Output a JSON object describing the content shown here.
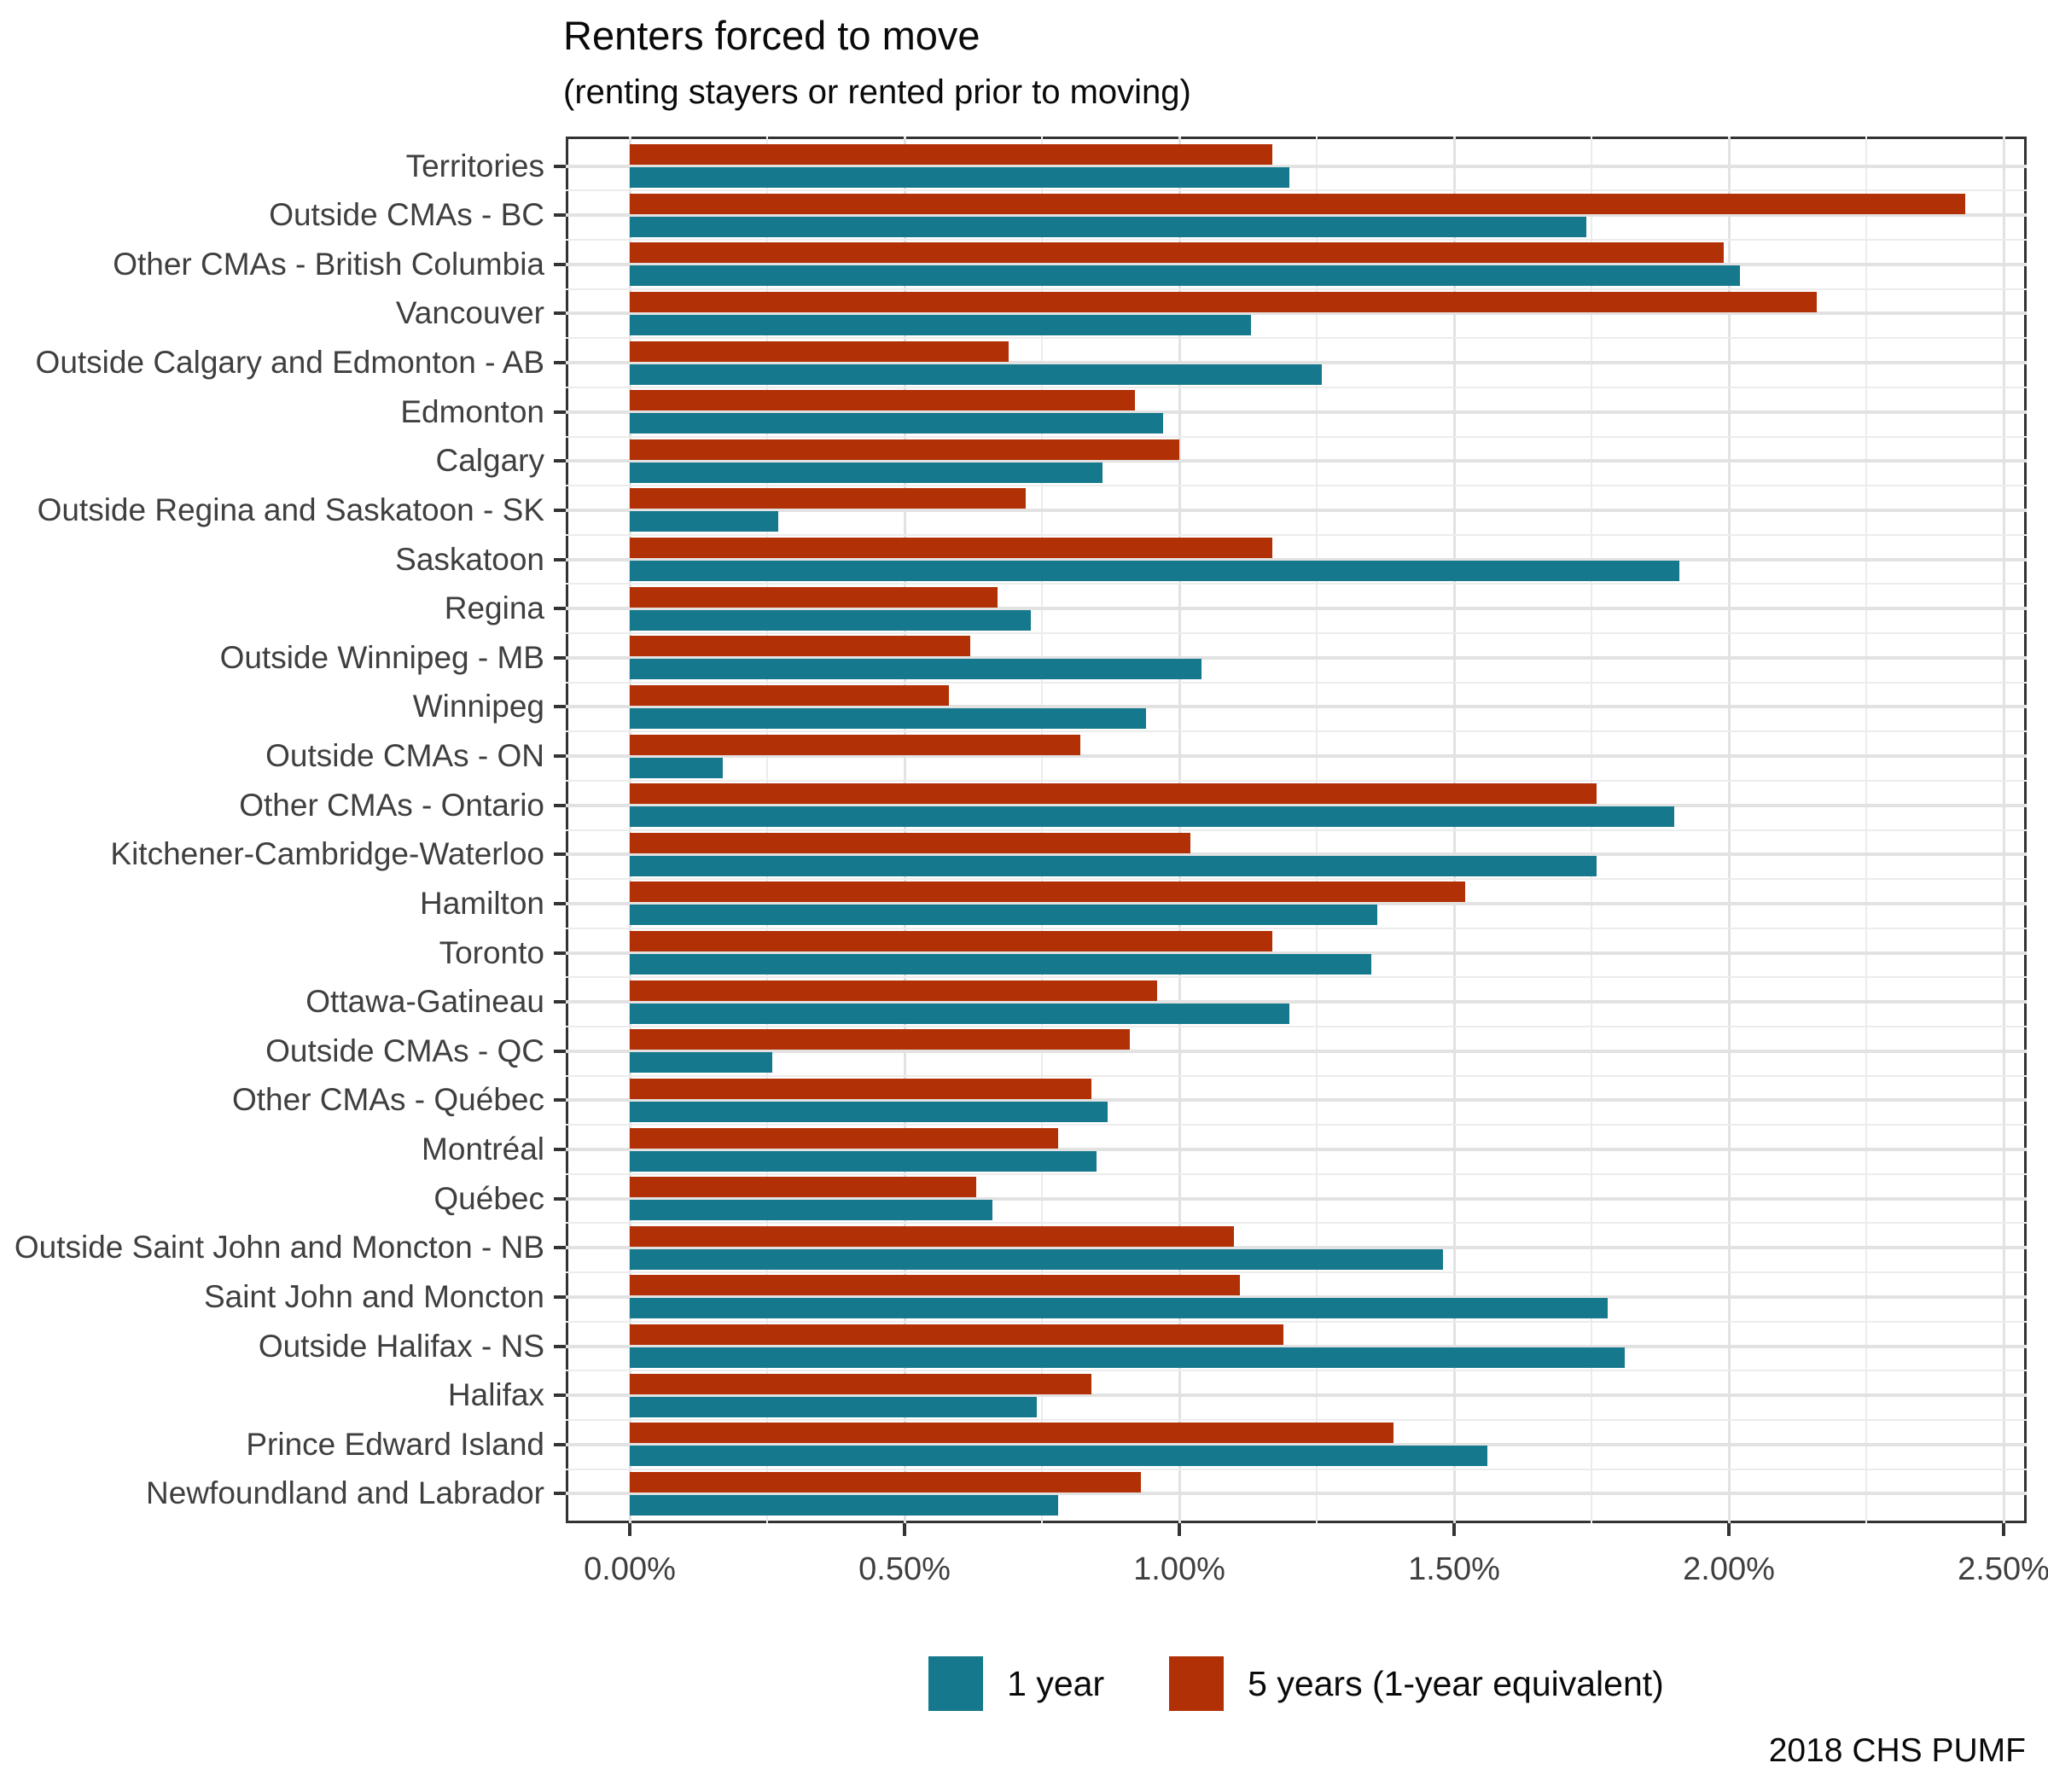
{
  "chart_data": {
    "type": "bar",
    "orientation": "horizontal",
    "title": "Renters forced to move",
    "subtitle": "(renting stayers or rented prior to moving)",
    "caption": "2018 CHS PUMF",
    "xlabel": "",
    "ylabel": "",
    "grid": true,
    "x_axis": {
      "min": 0,
      "max": 2.5,
      "unit": "percent",
      "tick_labels": [
        "0.00%",
        "0.50%",
        "1.00%",
        "1.50%",
        "2.00%",
        "2.50%"
      ],
      "major_step": 0.5,
      "minor_step": 0.25
    },
    "legend": {
      "position": "bottom",
      "items": [
        {
          "key": "one_year",
          "label": "1 year",
          "color": "#15788c"
        },
        {
          "key": "five_years",
          "label": "5 years (1-year equivalent)",
          "color": "#b23005"
        }
      ]
    },
    "categories": [
      "Territories",
      "Outside CMAs - BC",
      "Other CMAs - British Columbia",
      "Vancouver",
      "Outside Calgary and Edmonton - AB",
      "Edmonton",
      "Calgary",
      "Outside Regina and Saskatoon - SK",
      "Saskatoon",
      "Regina",
      "Outside Winnipeg - MB",
      "Winnipeg",
      "Outside CMAs - ON",
      "Other CMAs - Ontario",
      "Kitchener-Cambridge-Waterloo",
      "Hamilton",
      "Toronto",
      "Ottawa-Gatineau",
      "Outside CMAs - QC",
      "Other CMAs - Québec",
      "Montréal",
      "Québec",
      "Outside Saint John and Moncton - NB",
      "Saint John and Moncton",
      "Outside Halifax - NS",
      "Halifax",
      "Prince Edward Island",
      "Newfoundland and Labrador"
    ],
    "series": [
      {
        "key": "one_year",
        "name": "1 year",
        "color": "#15788c",
        "values": [
          1.2,
          1.74,
          2.02,
          1.13,
          1.26,
          0.97,
          0.86,
          0.27,
          1.91,
          0.73,
          1.04,
          0.94,
          0.17,
          1.9,
          1.76,
          1.36,
          1.35,
          1.2,
          0.26,
          0.87,
          0.85,
          0.66,
          1.48,
          1.78,
          1.81,
          0.74,
          1.56,
          0.78
        ]
      },
      {
        "key": "five_years",
        "name": "5 years (1-year equivalent)",
        "color": "#b23005",
        "values": [
          1.17,
          2.43,
          1.99,
          2.16,
          0.69,
          0.92,
          1.0,
          0.72,
          1.17,
          0.67,
          0.62,
          0.58,
          0.82,
          1.76,
          1.02,
          1.52,
          1.17,
          0.96,
          0.91,
          0.84,
          0.78,
          0.63,
          1.1,
          1.11,
          1.19,
          0.84,
          1.39,
          0.93
        ]
      }
    ]
  }
}
